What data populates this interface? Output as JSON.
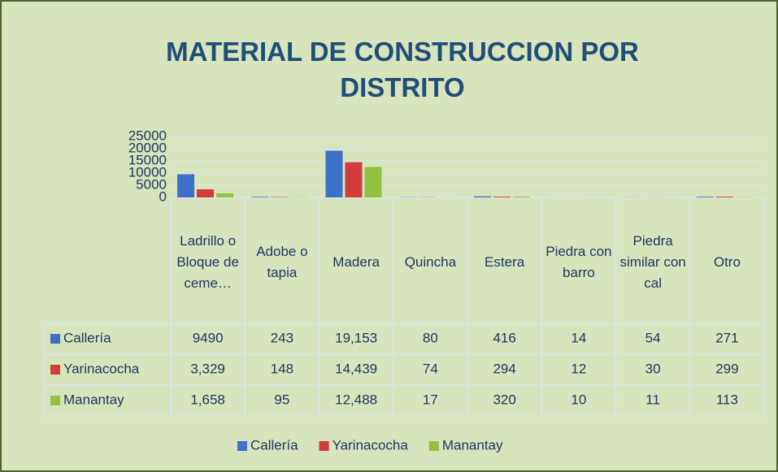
{
  "chart_data": {
    "type": "bar",
    "title": "MATERIAL DE CONSTRUCCION POR DISTRITO",
    "categories": [
      "Ladrillo o Bloque de ceme…",
      "Adobe o tapia",
      "Madera",
      "Quincha",
      "Estera",
      "Piedra con barro",
      "Piedra similar con cal",
      "Otro"
    ],
    "series": [
      {
        "name": "Callería",
        "color": "#3d70c8",
        "values": [
          9490,
          243,
          19153,
          80,
          416,
          14,
          54,
          271
        ],
        "value_labels": [
          "9490",
          "243",
          "19,153",
          "80",
          "416",
          "14",
          "54",
          "271"
        ]
      },
      {
        "name": "Yarinacocha",
        "color": "#d23c3a",
        "values": [
          3329,
          148,
          14439,
          74,
          294,
          12,
          30,
          299
        ],
        "value_labels": [
          "3,329",
          "148",
          "14,439",
          "74",
          "294",
          "12",
          "30",
          "299"
        ]
      },
      {
        "name": "Manantay",
        "color": "#93c140",
        "values": [
          1658,
          95,
          12488,
          17,
          320,
          10,
          11,
          113
        ],
        "value_labels": [
          "1,658",
          "95",
          "12,488",
          "17",
          "320",
          "10",
          "11",
          "113"
        ]
      }
    ],
    "ylim": [
      0,
      25000
    ],
    "yticks": [
      0,
      5000,
      10000,
      15000,
      20000,
      25000
    ],
    "grid": true,
    "legend": "bottom"
  }
}
